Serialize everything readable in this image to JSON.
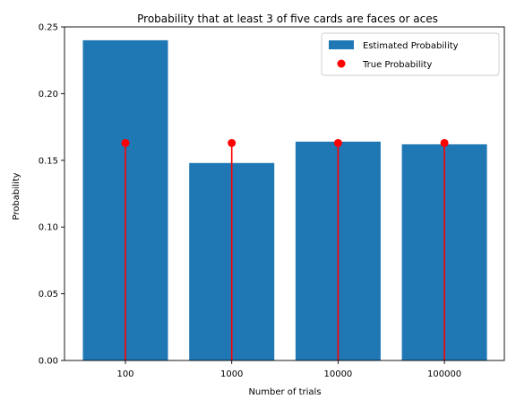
{
  "chart_data": {
    "type": "bar",
    "title": "Probability that at least 3 of five cards are faces or aces",
    "xlabel": "Number of trials",
    "ylabel": "Probability",
    "categories": [
      "100",
      "1000",
      "10000",
      "100000"
    ],
    "ylim": [
      0,
      0.25
    ],
    "yticks": [
      "0.00",
      "0.05",
      "0.10",
      "0.15",
      "0.20",
      "0.25"
    ],
    "grid": false,
    "legend_position": "top-right",
    "series": [
      {
        "name": "Estimated Probability",
        "kind": "bar",
        "color": "#1f77b4",
        "values": [
          0.24,
          0.148,
          0.164,
          0.162
        ]
      },
      {
        "name": "True Probability",
        "kind": "stem",
        "color": "#ff0000",
        "values": [
          0.163,
          0.163,
          0.163,
          0.163
        ]
      }
    ]
  }
}
